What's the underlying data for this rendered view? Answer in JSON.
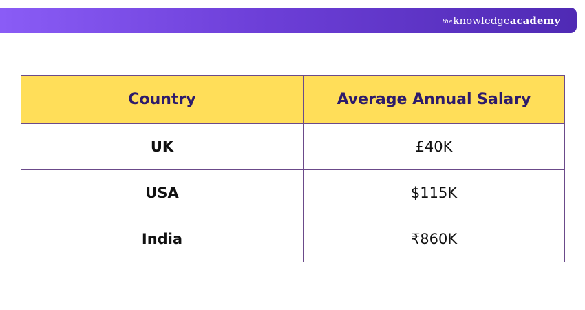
{
  "header": {
    "brand": {
      "the": "the",
      "knowledge": "knowledge",
      "academy": "academy"
    }
  },
  "table": {
    "columns": [
      "Country",
      "Average Annual Salary"
    ],
    "rows": [
      {
        "country": "UK",
        "salary": "£40K"
      },
      {
        "country": "USA",
        "salary": "$115K"
      },
      {
        "country": "India",
        "salary": "₹860K"
      }
    ]
  },
  "colors": {
    "banner_start": "#8a5cf6",
    "banner_end": "#4f2ab4",
    "header_fill": "#ffde59",
    "header_text": "#2d1b6b",
    "border": "#6b4a8a"
  }
}
